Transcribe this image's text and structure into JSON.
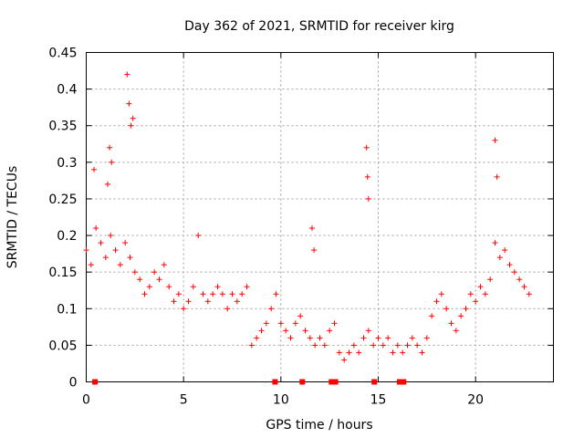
{
  "chart_data": {
    "type": "scatter",
    "title": "Day 362 of 2021, SRMTID for receiver kirg",
    "xlabel": "GPS time / hours",
    "ylabel": "SRMTID / TECUs",
    "xlim": [
      0,
      24
    ],
    "ylim": [
      0,
      0.45
    ],
    "grid": true,
    "xticks": [
      0,
      5,
      10,
      15,
      20
    ],
    "xtick_labels": [
      "0",
      "5",
      "10",
      "15",
      "20"
    ],
    "yticks": [
      0,
      0.05,
      0.1,
      0.15,
      0.2,
      0.25,
      0.3,
      0.35,
      0.4,
      0.45
    ],
    "ytick_labels": [
      "0",
      "0.05",
      "0.1",
      "0.15",
      "0.2",
      "0.25",
      "0.3",
      "0.35",
      "0.4",
      "0.45"
    ],
    "marker": "+",
    "marker_color": "#ff0000",
    "series": [
      {
        "name": "SRMTID",
        "x": [
          0.0,
          0.25,
          0.5,
          0.75,
          1.0,
          1.25,
          1.5,
          1.75,
          2.0,
          2.25,
          2.5,
          2.75,
          3.0,
          3.25,
          3.5,
          3.75,
          4.0,
          4.25,
          4.5,
          4.75,
          5.0,
          5.25,
          5.5,
          5.75,
          6.0,
          6.25,
          6.5,
          6.75,
          7.0,
          7.25,
          7.5,
          7.75,
          8.0,
          8.25,
          8.5,
          8.75,
          9.0,
          9.25,
          9.5,
          9.75,
          10.0,
          10.25,
          10.5,
          10.75,
          11.0,
          11.25,
          11.5,
          11.75,
          12.0,
          12.25,
          12.5,
          12.75,
          13.0,
          13.25,
          13.5,
          13.75,
          14.0,
          14.25,
          14.5,
          14.75,
          15.0,
          15.25,
          15.5,
          15.75,
          16.0,
          16.25,
          16.5,
          16.75,
          17.0,
          17.25,
          17.5,
          17.75,
          18.0,
          18.25,
          18.5,
          18.75,
          19.0,
          19.25,
          19.5,
          19.75,
          20.0,
          20.25,
          20.5,
          20.75,
          21.0,
          21.25,
          21.5,
          21.75,
          22.0,
          22.25,
          22.5,
          22.75,
          2.1,
          2.2,
          2.4,
          1.2,
          1.3,
          0.4,
          14.4,
          14.45,
          14.5,
          11.6,
          11.7,
          21.0,
          21.1,
          2.3,
          1.1
        ],
        "y": [
          0.18,
          0.16,
          0.21,
          0.19,
          0.17,
          0.2,
          0.18,
          0.16,
          0.19,
          0.17,
          0.15,
          0.14,
          0.12,
          0.13,
          0.15,
          0.14,
          0.16,
          0.13,
          0.11,
          0.12,
          0.1,
          0.11,
          0.13,
          0.2,
          0.12,
          0.11,
          0.12,
          0.13,
          0.12,
          0.1,
          0.12,
          0.11,
          0.12,
          0.13,
          0.05,
          0.06,
          0.07,
          0.08,
          0.1,
          0.12,
          0.08,
          0.07,
          0.06,
          0.08,
          0.09,
          0.07,
          0.06,
          0.05,
          0.06,
          0.05,
          0.07,
          0.08,
          0.04,
          0.03,
          0.04,
          0.05,
          0.04,
          0.06,
          0.07,
          0.05,
          0.06,
          0.05,
          0.06,
          0.04,
          0.05,
          0.04,
          0.05,
          0.06,
          0.05,
          0.04,
          0.06,
          0.09,
          0.11,
          0.12,
          0.1,
          0.08,
          0.07,
          0.09,
          0.1,
          0.12,
          0.11,
          0.13,
          0.12,
          0.14,
          0.19,
          0.17,
          0.18,
          0.16,
          0.15,
          0.14,
          0.13,
          0.12,
          0.42,
          0.38,
          0.36,
          0.32,
          0.3,
          0.29,
          0.32,
          0.28,
          0.25,
          0.21,
          0.18,
          0.33,
          0.28,
          0.35,
          0.27
        ]
      }
    ],
    "gap_markers_x": [
      0.45,
      9.7,
      11.1,
      12.6,
      12.8,
      14.8,
      16.1,
      16.3
    ]
  }
}
